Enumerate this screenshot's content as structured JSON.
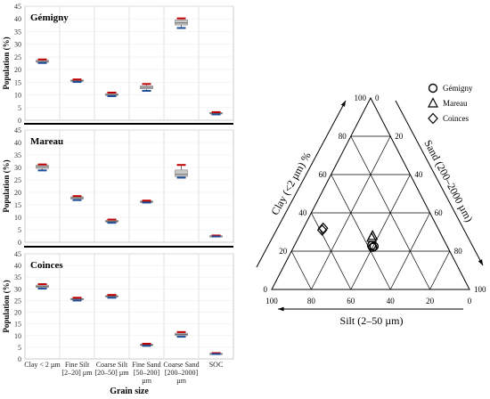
{
  "chart_data": [
    {
      "type": "box",
      "panel": "Gémigny",
      "title": "Gémigny",
      "ylabel": "Population (%)",
      "xlabel": "Grain size",
      "ylim": [
        0,
        45
      ],
      "yticks": [
        0,
        5,
        10,
        15,
        20,
        25,
        30,
        35,
        40,
        45
      ],
      "categories": [
        "Clay < 2 µm",
        "Fine Silt [2–20] µm",
        "Coarse Silt [20–50] µm",
        "Fine Sand [50–200] µm",
        "Coarse Sand [200–2000] µm",
        "SOC"
      ],
      "boxes": [
        {
          "min": 22.6,
          "q1": 22.9,
          "median": 23.2,
          "q3": 23.7,
          "max": 24.0
        },
        {
          "min": 15.1,
          "q1": 15.3,
          "median": 15.6,
          "q3": 15.9,
          "max": 16.1
        },
        {
          "min": 9.5,
          "q1": 9.8,
          "median": 10.1,
          "q3": 10.5,
          "max": 10.9
        },
        {
          "min": 11.6,
          "q1": 12.4,
          "median": 13.0,
          "q3": 13.5,
          "max": 14.3
        },
        {
          "min": 36.4,
          "q1": 37.6,
          "median": 38.4,
          "q3": 39.6,
          "max": 40.2
        },
        {
          "min": 2.3,
          "q1": 2.5,
          "median": 2.8,
          "q3": 3.0,
          "max": 3.2
        }
      ]
    },
    {
      "type": "box",
      "panel": "Mareau",
      "title": "Mareau",
      "ylabel": "Population (%)",
      "ylim": [
        0,
        45
      ],
      "yticks": [
        0,
        5,
        10,
        15,
        20,
        25,
        30,
        35,
        40,
        45
      ],
      "categories": [
        "Clay < 2 µm",
        "Fine Silt [2–20] µm",
        "Coarse Silt [20–50] µm",
        "Fine Sand [50–200] µm",
        "Coarse Sand [200–2000] µm",
        "SOC"
      ],
      "boxes": [
        {
          "min": 28.8,
          "q1": 29.6,
          "median": 30.3,
          "q3": 30.9,
          "max": 31.2
        },
        {
          "min": 16.9,
          "q1": 17.3,
          "median": 17.8,
          "q3": 18.2,
          "max": 18.5
        },
        {
          "min": 7.8,
          "q1": 8.1,
          "median": 8.4,
          "q3": 8.8,
          "max": 9.1
        },
        {
          "min": 15.9,
          "q1": 16.1,
          "median": 16.3,
          "q3": 16.5,
          "max": 16.7
        },
        {
          "min": 25.9,
          "q1": 26.4,
          "median": 27.2,
          "q3": 29.0,
          "max": 31.0
        },
        {
          "min": 2.3,
          "q1": 2.4,
          "median": 2.5,
          "q3": 2.6,
          "max": 2.7
        }
      ]
    },
    {
      "type": "box",
      "panel": "Coinces",
      "title": "Coinces",
      "ylabel": "Population (%)",
      "ylim": [
        0,
        45
      ],
      "yticks": [
        0,
        5,
        10,
        15,
        20,
        25,
        30,
        35,
        40,
        45
      ],
      "categories": [
        "Clay < 2 µm",
        "Fine Silt [2–20] µm",
        "Coarse Silt [20–50] µm",
        "Fine Sand [50–200] µm",
        "Coarse Sand [200–2000] µm",
        "SOC"
      ],
      "boxes": [
        {
          "min": 30.1,
          "q1": 30.6,
          "median": 31.0,
          "q3": 31.6,
          "max": 32.0
        },
        {
          "min": 25.0,
          "q1": 25.3,
          "median": 25.6,
          "q3": 25.9,
          "max": 26.2
        },
        {
          "min": 26.2,
          "q1": 26.5,
          "median": 26.8,
          "q3": 27.1,
          "max": 27.4
        },
        {
          "min": 5.6,
          "q1": 5.8,
          "median": 6.0,
          "q3": 6.3,
          "max": 6.5
        },
        {
          "min": 9.5,
          "q1": 10.0,
          "median": 10.5,
          "q3": 11.0,
          "max": 11.5
        },
        {
          "min": 2.1,
          "q1": 2.2,
          "median": 2.3,
          "q3": 2.4,
          "max": 2.5
        }
      ]
    },
    {
      "type": "ternary",
      "axes": {
        "clay": "Clay (<2 µm) %",
        "sand": "Sand (200–2000 µm)",
        "silt": "Silt (2–50 µm)"
      },
      "ticks": [
        0,
        20,
        40,
        60,
        80,
        100
      ],
      "legend": [
        "Gémigny",
        "Mareau",
        "Coinces"
      ],
      "legend_position": "top-right",
      "series": [
        {
          "name": "Gémigny",
          "marker": "circle",
          "points": [
            {
              "clay": 22,
              "silt": 38,
              "sand": 40
            },
            {
              "clay": 23,
              "silt": 38,
              "sand": 39
            },
            {
              "clay": 22.5,
              "silt": 37,
              "sand": 40.5
            }
          ]
        },
        {
          "name": "Mareau",
          "marker": "triangle",
          "points": [
            {
              "clay": 28,
              "silt": 35,
              "sand": 37
            },
            {
              "clay": 27,
              "silt": 36,
              "sand": 37
            }
          ]
        },
        {
          "name": "Coinces",
          "marker": "diamond",
          "points": [
            {
              "clay": 32,
              "silt": 58,
              "sand": 10
            },
            {
              "clay": 31,
              "silt": 59,
              "sand": 10
            }
          ]
        }
      ]
    }
  ]
}
